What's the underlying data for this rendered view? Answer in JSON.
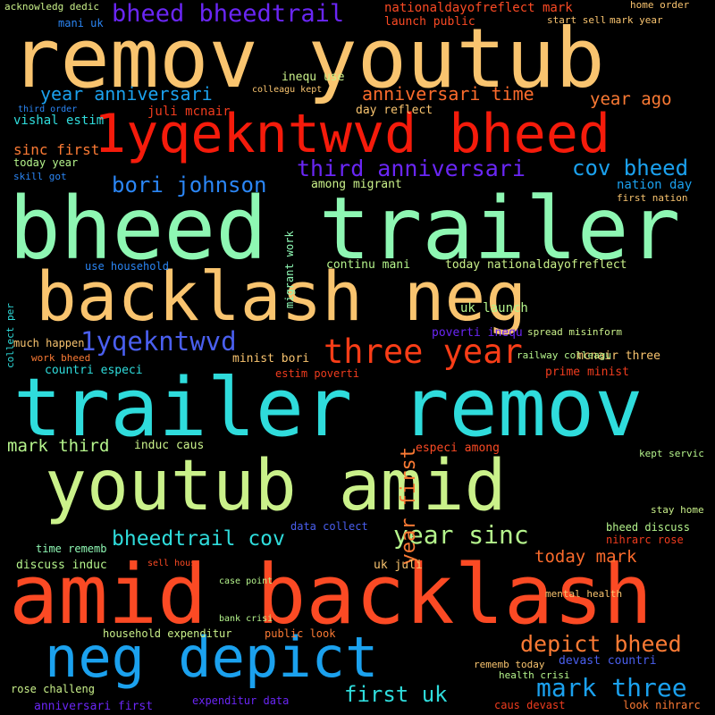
{
  "words": [
    {
      "t": "remov youtub",
      "c": "#f9c46f"
    },
    {
      "t": "bheed trailer",
      "c": "#8ef7b3"
    },
    {
      "t": "amid backlash",
      "c": "#fb4a24"
    },
    {
      "t": "trailer remov",
      "c": "#2fdcdc"
    },
    {
      "t": "backlash neg",
      "c": "#f9c46f"
    },
    {
      "t": "youtub amid",
      "c": "#caf18a"
    },
    {
      "t": "1yqekntwvd bheed",
      "c": "#f51b0b"
    },
    {
      "t": "neg depict",
      "c": "#1ba1ee"
    },
    {
      "t": "three year",
      "c": "#f93d17"
    },
    {
      "t": "bheed bheedtrail",
      "c": "#6a26f5"
    },
    {
      "t": "1yqekntwvd",
      "c": "#4a5fef"
    },
    {
      "t": "third anniversari",
      "c": "#6a26f5"
    },
    {
      "t": "bori johnson",
      "c": "#2b86f5"
    },
    {
      "t": "cov bheed",
      "c": "#1ba1ee"
    },
    {
      "t": "year anniversari",
      "c": "#1ba1ee"
    },
    {
      "t": "anniversari time",
      "c": "#fb6b2c"
    },
    {
      "t": "year ago",
      "c": "#fb7a34"
    },
    {
      "t": "bheedtrail cov",
      "c": "#2fdcdc"
    },
    {
      "t": "year sinc",
      "c": "#b5f48c"
    },
    {
      "t": "depict bheed",
      "c": "#fb7a34"
    },
    {
      "t": "mark three",
      "c": "#1ba1ee"
    },
    {
      "t": "first uk",
      "c": "#2fdcdc"
    },
    {
      "t": "year first",
      "c": "#fb7a34"
    },
    {
      "t": "mark third",
      "c": "#b5f48c"
    },
    {
      "t": "today mark",
      "c": "#fb6b2c"
    },
    {
      "t": "nationaldayofreflect mark",
      "c": "#fb4a24"
    },
    {
      "t": "launch public",
      "c": "#fb4a24"
    },
    {
      "t": "sinc first",
      "c": "#fb7a34"
    },
    {
      "t": "juli mcnair",
      "c": "#f03c1e"
    },
    {
      "t": "vishal estim",
      "c": "#2fdcdc"
    },
    {
      "t": "day reflect",
      "c": "#f9c46f"
    },
    {
      "t": "nation day",
      "c": "#1ba1ee"
    },
    {
      "t": "today year",
      "c": "#b5f48c"
    },
    {
      "t": "among migrant",
      "c": "#caf18a"
    },
    {
      "t": "skill got",
      "c": "#2b86f5"
    },
    {
      "t": "first nation",
      "c": "#f9c46f"
    },
    {
      "t": "use household",
      "c": "#2b86f5"
    },
    {
      "t": "continu mani",
      "c": "#b5f48c"
    },
    {
      "t": "today nationaldayofreflect",
      "c": "#caf18a"
    },
    {
      "t": "migrant work",
      "c": "#8ef7b3"
    },
    {
      "t": "uk launch",
      "c": "#b5f48c"
    },
    {
      "t": "poverti inequ",
      "c": "#6a26f5"
    },
    {
      "t": "spread misinform",
      "c": "#caf18a"
    },
    {
      "t": "much happen",
      "c": "#f9c46f"
    },
    {
      "t": "work bheed",
      "c": "#fb7a34"
    },
    {
      "t": "minist bori",
      "c": "#f9c46f"
    },
    {
      "t": "mcnair three",
      "c": "#f9c46f"
    },
    {
      "t": "countri especi",
      "c": "#2fdcdc"
    },
    {
      "t": "estim poverti",
      "c": "#f03c1e"
    },
    {
      "t": "prime minist",
      "c": "#f03c1e"
    },
    {
      "t": "railway colleagu",
      "c": "#b5f48c"
    },
    {
      "t": "induc caus",
      "c": "#caf18a"
    },
    {
      "t": "especi among",
      "c": "#fb4a24"
    },
    {
      "t": "kept servic",
      "c": "#b5f48c"
    },
    {
      "t": "time rememb",
      "c": "#8ef7b3"
    },
    {
      "t": "discuss induc",
      "c": "#b5f48c"
    },
    {
      "t": "bheed discuss",
      "c": "#b5f48c"
    },
    {
      "t": "nihrarc rose",
      "c": "#f03c1e"
    },
    {
      "t": "stay home",
      "c": "#caf18a"
    },
    {
      "t": "uk juli",
      "c": "#f9c46f"
    },
    {
      "t": "household expenditur",
      "c": "#caf18a"
    },
    {
      "t": "public look",
      "c": "#fb7a34"
    },
    {
      "t": "devast countri",
      "c": "#4a5fef"
    },
    {
      "t": "rose challeng",
      "c": "#caf18a"
    },
    {
      "t": "anniversari first",
      "c": "#6a26f5"
    },
    {
      "t": "expenditur data",
      "c": "#6a26f5"
    },
    {
      "t": "caus devast",
      "c": "#f03c1e"
    },
    {
      "t": "look nihrarc",
      "c": "#fb7a34"
    },
    {
      "t": "health crisi",
      "c": "#b5f48c"
    },
    {
      "t": "rememb today",
      "c": "#f9c46f"
    },
    {
      "t": "acknowledg dedic",
      "c": "#caf18a"
    },
    {
      "t": "mani uk",
      "c": "#2b86f5"
    },
    {
      "t": "start sell",
      "c": "#f9c46f"
    },
    {
      "t": "mark year",
      "c": "#f9c46f"
    },
    {
      "t": "home order",
      "c": "#f9c46f"
    },
    {
      "t": "inequ use",
      "c": "#caf18a"
    },
    {
      "t": "colleagu kept",
      "c": "#f9c46f"
    },
    {
      "t": "third order",
      "c": "#2b86f5"
    },
    {
      "t": "data collect",
      "c": "#4a5fef"
    },
    {
      "t": "sell hous",
      "c": "#fb4a24"
    },
    {
      "t": "mental health",
      "c": "#f9c46f"
    },
    {
      "t": "bank crisi",
      "c": "#b5f48c"
    },
    {
      "t": "case point",
      "c": "#b5f48c"
    },
    {
      "t": "collect per",
      "c": "#2fdcdc"
    }
  ]
}
